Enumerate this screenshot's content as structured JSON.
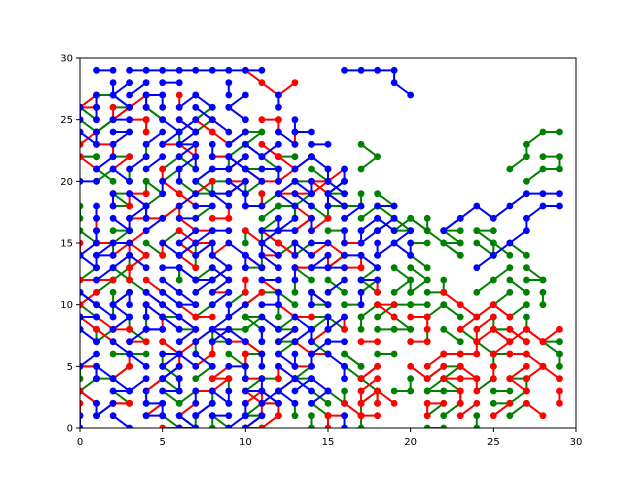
{
  "chart_data": {
    "type": "line",
    "title": "",
    "xlabel": "",
    "ylabel": "",
    "xlim": [
      0,
      30
    ],
    "ylim": [
      0,
      30
    ],
    "grid": false,
    "legend": "none",
    "x_ticks": [
      0,
      5,
      10,
      15,
      20,
      25,
      30
    ],
    "y_ticks": [
      0,
      5,
      10,
      15,
      20,
      25,
      30
    ],
    "series": [
      {
        "color": "#008000",
        "marker": "circle",
        "region": {
          "x_max_by_y": [
            [
              0,
              29
            ],
            [
              4,
              29
            ],
            [
              8,
              29
            ],
            [
              12,
              28
            ],
            [
              16,
              29
            ],
            [
              18,
              19
            ],
            [
              20,
              17
            ],
            [
              22,
              14
            ],
            [
              24,
              11
            ],
            [
              26,
              8
            ],
            [
              27,
              3
            ]
          ]
        },
        "density": 0.45,
        "values": [
          [
            [
              0,
              26
            ],
            [
              1,
              27
            ],
            [
              2,
              27
            ],
            [
              3,
              26
            ]
          ],
          [
            [
              26,
              21
            ],
            [
              27,
              22
            ],
            [
              27,
              23
            ],
            [
              28,
              24
            ],
            [
              29,
              24
            ]
          ],
          [
            [
              27,
              20
            ],
            [
              28,
              21
            ],
            [
              29,
              21
            ],
            [
              29,
              22
            ],
            [
              28,
              22
            ]
          ],
          [
            [
              17,
              21
            ],
            [
              18,
              22
            ],
            [
              17,
              23
            ]
          ],
          [
            [
              19,
              16
            ],
            [
              20,
              17
            ],
            [
              21,
              16
            ],
            [
              22,
              15
            ],
            [
              23,
              14
            ]
          ]
        ]
      },
      {
        "color": "#ff0000",
        "marker": "circle",
        "region": {
          "x_max_by_y": [
            [
              0,
              29
            ],
            [
              4,
              29
            ],
            [
              8,
              28
            ],
            [
              12,
              22
            ],
            [
              14,
              18
            ],
            [
              17,
              17
            ],
            [
              20,
              18
            ],
            [
              22,
              15
            ],
            [
              25,
              12
            ],
            [
              27,
              6
            ]
          ]
        },
        "density": 0.35,
        "values": [
          [
            [
              0,
              26
            ],
            [
              1,
              26
            ]
          ],
          [
            [
              10,
              29
            ],
            [
              11,
              28
            ],
            [
              12,
              27
            ],
            [
              13,
              28
            ]
          ],
          [
            [
              24,
              7
            ],
            [
              25,
              8
            ],
            [
              26,
              7
            ],
            [
              27,
              8
            ],
            [
              28,
              7
            ],
            [
              29,
              8
            ]
          ],
          [
            [
              22,
              11
            ],
            [
              23,
              10
            ],
            [
              24,
              9
            ],
            [
              25,
              10
            ],
            [
              26,
              9
            ]
          ]
        ]
      },
      {
        "color": "#0000ff",
        "marker": "circle",
        "region": {
          "x_max_by_y": [
            [
              0,
              16
            ],
            [
              5,
              16
            ],
            [
              10,
              17
            ],
            [
              14,
              20
            ],
            [
              17,
              20
            ],
            [
              19,
              18
            ],
            [
              22,
              16
            ],
            [
              25,
              15
            ],
            [
              27,
              12
            ],
            [
              28,
              9
            ],
            [
              29,
              3
            ]
          ]
        },
        "density": 0.55,
        "values": [
          [
            [
              3,
              29
            ],
            [
              4,
              29
            ],
            [
              5,
              29
            ],
            [
              6,
              29
            ],
            [
              7,
              29
            ],
            [
              8,
              29
            ],
            [
              9,
              29
            ],
            [
              10,
              29
            ],
            [
              11,
              29
            ]
          ],
          [
            [
              16,
              29
            ],
            [
              17,
              29
            ],
            [
              18,
              29
            ],
            [
              19,
              29
            ],
            [
              19,
              28
            ],
            [
              20,
              27
            ]
          ],
          [
            [
              22,
              16
            ],
            [
              23,
              17
            ],
            [
              24,
              18
            ],
            [
              25,
              17
            ],
            [
              26,
              18
            ],
            [
              27,
              19
            ],
            [
              28,
              19
            ],
            [
              29,
              19
            ]
          ],
          [
            [
              24,
              13
            ],
            [
              25,
              14
            ],
            [
              26,
              15
            ],
            [
              27,
              16
            ],
            [
              27,
              17
            ],
            [
              28,
              18
            ],
            [
              29,
              18
            ]
          ]
        ]
      }
    ]
  }
}
